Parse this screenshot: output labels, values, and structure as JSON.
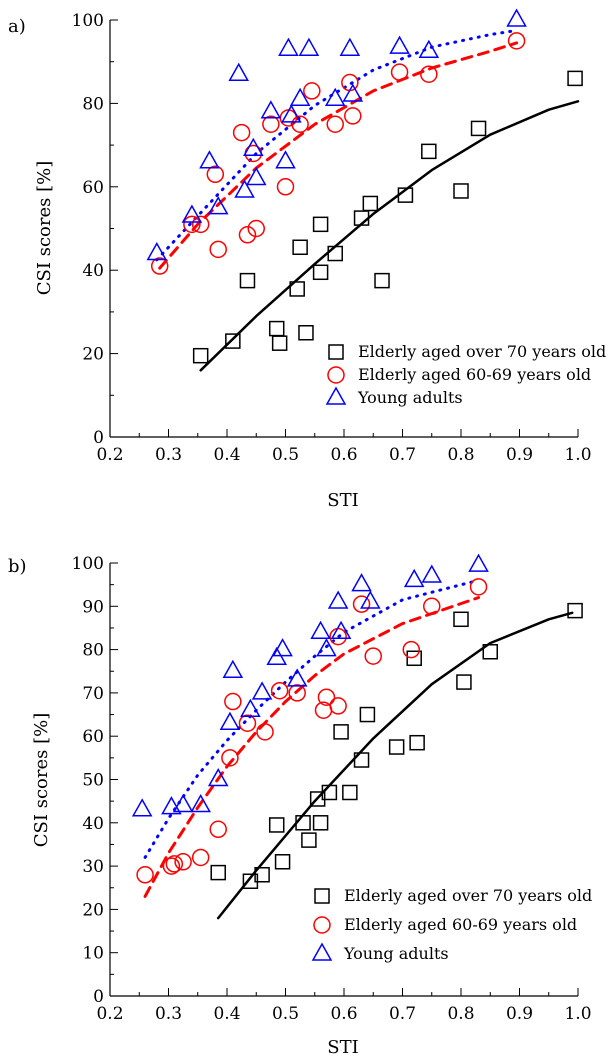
{
  "figure": {
    "panels": [
      "a)",
      "b)"
    ]
  },
  "legend": {
    "entries": [
      {
        "label": "Elderly aged over 70 years old",
        "marker": "square",
        "color": "#000000"
      },
      {
        "label": "Elderly aged 60-69 years old",
        "marker": "circle",
        "color": "#ff0000"
      },
      {
        "label": "Young adults",
        "marker": "triangle",
        "color": "#0000ff"
      }
    ]
  },
  "chart_data": [
    {
      "type": "scatter",
      "panel": "a)",
      "xlabel": "STI",
      "ylabel": "CSI scores  [%]",
      "xlim": [
        0.2,
        1.0
      ],
      "ylim": [
        0,
        100
      ],
      "xticks": [
        "0.2",
        "0.3",
        "0.4",
        "0.5",
        "0.6",
        "0.7",
        "0.8",
        "0.9",
        "1.0"
      ],
      "yticks": [
        "0",
        "20",
        "40",
        "60",
        "80",
        "100"
      ],
      "legend_position": "bottom-right",
      "grid": false,
      "series": [
        {
          "name": "Elderly aged over 70 years old",
          "marker": "square",
          "color": "#000000",
          "fit_style": "solid",
          "points": [
            [
              0.355,
              19.5
            ],
            [
              0.41,
              23
            ],
            [
              0.435,
              37.5
            ],
            [
              0.485,
              26
            ],
            [
              0.49,
              22.5
            ],
            [
              0.52,
              35.5
            ],
            [
              0.525,
              45.5
            ],
            [
              0.535,
              25
            ],
            [
              0.56,
              51
            ],
            [
              0.56,
              39.5
            ],
            [
              0.585,
              44
            ],
            [
              0.63,
              52.5
            ],
            [
              0.645,
              56
            ],
            [
              0.665,
              37.5
            ],
            [
              0.705,
              58
            ],
            [
              0.745,
              68.5
            ],
            [
              0.8,
              59
            ],
            [
              0.83,
              74
            ],
            [
              0.995,
              86
            ]
          ],
          "fit": [
            [
              0.355,
              16
            ],
            [
              0.45,
              29
            ],
            [
              0.55,
              41.5
            ],
            [
              0.65,
              53.5
            ],
            [
              0.75,
              64
            ],
            [
              0.85,
              72.5
            ],
            [
              0.95,
              78.5
            ],
            [
              1.0,
              80.5
            ]
          ]
        },
        {
          "name": "Elderly aged 60-69 years old",
          "marker": "circle",
          "color": "#ff0000",
          "fit_style": "dashed",
          "points": [
            [
              0.285,
              41
            ],
            [
              0.34,
              51
            ],
            [
              0.355,
              51
            ],
            [
              0.38,
              63
            ],
            [
              0.385,
              45
            ],
            [
              0.425,
              73
            ],
            [
              0.435,
              48.5
            ],
            [
              0.445,
              68
            ],
            [
              0.45,
              50
            ],
            [
              0.475,
              75
            ],
            [
              0.5,
              60
            ],
            [
              0.505,
              76.5
            ],
            [
              0.525,
              75
            ],
            [
              0.545,
              83
            ],
            [
              0.585,
              75
            ],
            [
              0.61,
              85
            ],
            [
              0.615,
              77
            ],
            [
              0.695,
              87.5
            ],
            [
              0.745,
              87
            ],
            [
              0.895,
              95
            ]
          ],
          "fit": [
            [
              0.285,
              40.5
            ],
            [
              0.35,
              51
            ],
            [
              0.45,
              64.5
            ],
            [
              0.55,
              75
            ],
            [
              0.65,
              83
            ],
            [
              0.75,
              88.5
            ],
            [
              0.85,
              92.5
            ],
            [
              0.895,
              94.5
            ]
          ]
        },
        {
          "name": "Young adults",
          "marker": "triangle",
          "color": "#0000ff",
          "fit_style": "dotted",
          "points": [
            [
              0.28,
              44
            ],
            [
              0.34,
              53
            ],
            [
              0.37,
              66
            ],
            [
              0.385,
              55
            ],
            [
              0.42,
              87
            ],
            [
              0.43,
              59
            ],
            [
              0.445,
              69
            ],
            [
              0.45,
              62
            ],
            [
              0.475,
              78
            ],
            [
              0.5,
              66
            ],
            [
              0.505,
              93
            ],
            [
              0.51,
              77
            ],
            [
              0.525,
              81
            ],
            [
              0.54,
              93
            ],
            [
              0.585,
              81
            ],
            [
              0.61,
              93
            ],
            [
              0.615,
              82
            ],
            [
              0.695,
              93.5
            ],
            [
              0.745,
              92.5
            ],
            [
              0.895,
              100
            ]
          ],
          "fit": [
            [
              0.28,
              42.5
            ],
            [
              0.35,
              53
            ],
            [
              0.45,
              68
            ],
            [
              0.55,
              79.5
            ],
            [
              0.65,
              88
            ],
            [
              0.75,
              93.5
            ],
            [
              0.85,
              96.5
            ],
            [
              0.895,
              97.5
            ]
          ]
        }
      ]
    },
    {
      "type": "scatter",
      "panel": "b)",
      "xlabel": "STI",
      "ylabel": "CSI scores [%]",
      "xlim": [
        0.2,
        1.0
      ],
      "ylim": [
        0,
        100
      ],
      "xticks": [
        "0.2",
        "0.3",
        "0.4",
        "0.5",
        "0.6",
        "0.7",
        "0.8",
        "0.9",
        "1.0"
      ],
      "yticks": [
        "0",
        "10",
        "20",
        "30",
        "40",
        "50",
        "60",
        "70",
        "80",
        "90",
        "100"
      ],
      "legend_position": "bottom-right",
      "grid": false,
      "series": [
        {
          "name": "Elderly aged over 70 years old",
          "marker": "square",
          "color": "#000000",
          "fit_style": "solid",
          "points": [
            [
              0.385,
              28.5
            ],
            [
              0.44,
              26.5
            ],
            [
              0.46,
              28
            ],
            [
              0.485,
              39.5
            ],
            [
              0.495,
              31
            ],
            [
              0.53,
              40
            ],
            [
              0.54,
              36
            ],
            [
              0.555,
              45.5
            ],
            [
              0.56,
              40
            ],
            [
              0.575,
              47
            ],
            [
              0.595,
              61
            ],
            [
              0.61,
              47
            ],
            [
              0.63,
              54.5
            ],
            [
              0.64,
              65
            ],
            [
              0.69,
              57.5
            ],
            [
              0.72,
              78
            ],
            [
              0.725,
              58.5
            ],
            [
              0.8,
              87
            ],
            [
              0.805,
              72.5
            ],
            [
              0.85,
              79.5
            ],
            [
              0.995,
              89
            ]
          ],
          "fit": [
            [
              0.385,
              18
            ],
            [
              0.45,
              29
            ],
            [
              0.55,
              45
            ],
            [
              0.65,
              59.5
            ],
            [
              0.75,
              72
            ],
            [
              0.85,
              81.5
            ],
            [
              0.95,
              87
            ],
            [
              0.99,
              88.5
            ]
          ]
        },
        {
          "name": "Elderly aged 60-69 years old",
          "marker": "circle",
          "color": "#ff0000",
          "fit_style": "dashed",
          "points": [
            [
              0.26,
              28
            ],
            [
              0.305,
              30
            ],
            [
              0.31,
              30.5
            ],
            [
              0.325,
              31
            ],
            [
              0.355,
              32
            ],
            [
              0.385,
              38.5
            ],
            [
              0.405,
              55
            ],
            [
              0.41,
              68
            ],
            [
              0.435,
              63
            ],
            [
              0.465,
              61
            ],
            [
              0.49,
              70.5
            ],
            [
              0.52,
              70
            ],
            [
              0.565,
              66
            ],
            [
              0.57,
              69
            ],
            [
              0.59,
              67
            ],
            [
              0.59,
              83
            ],
            [
              0.63,
              90.5
            ],
            [
              0.65,
              78.5
            ],
            [
              0.715,
              80
            ],
            [
              0.75,
              90
            ],
            [
              0.83,
              94.5
            ]
          ],
          "fit": [
            [
              0.26,
              23
            ],
            [
              0.3,
              33
            ],
            [
              0.35,
              43.5
            ],
            [
              0.4,
              53
            ],
            [
              0.45,
              61
            ],
            [
              0.5,
              68
            ],
            [
              0.55,
              74
            ],
            [
              0.6,
              79
            ],
            [
              0.7,
              86
            ],
            [
              0.83,
              92
            ]
          ]
        },
        {
          "name": "Young adults",
          "marker": "triangle",
          "color": "#0000ff",
          "fit_style": "dotted",
          "points": [
            [
              0.255,
              43
            ],
            [
              0.305,
              43.5
            ],
            [
              0.325,
              44
            ],
            [
              0.355,
              44
            ],
            [
              0.385,
              50
            ],
            [
              0.405,
              63
            ],
            [
              0.41,
              75
            ],
            [
              0.44,
              66
            ],
            [
              0.46,
              70
            ],
            [
              0.485,
              78
            ],
            [
              0.495,
              80
            ],
            [
              0.52,
              73
            ],
            [
              0.56,
              84
            ],
            [
              0.57,
              80
            ],
            [
              0.59,
              91
            ],
            [
              0.595,
              84
            ],
            [
              0.63,
              95
            ],
            [
              0.645,
              91
            ],
            [
              0.72,
              96
            ],
            [
              0.75,
              97
            ],
            [
              0.83,
              99.5
            ]
          ],
          "fit": [
            [
              0.26,
              32
            ],
            [
              0.3,
              41
            ],
            [
              0.35,
              51
            ],
            [
              0.4,
              59
            ],
            [
              0.45,
              66
            ],
            [
              0.5,
              72.5
            ],
            [
              0.55,
              78.5
            ],
            [
              0.6,
              84
            ],
            [
              0.7,
              91.5
            ],
            [
              0.83,
              96
            ]
          ]
        }
      ]
    }
  ]
}
